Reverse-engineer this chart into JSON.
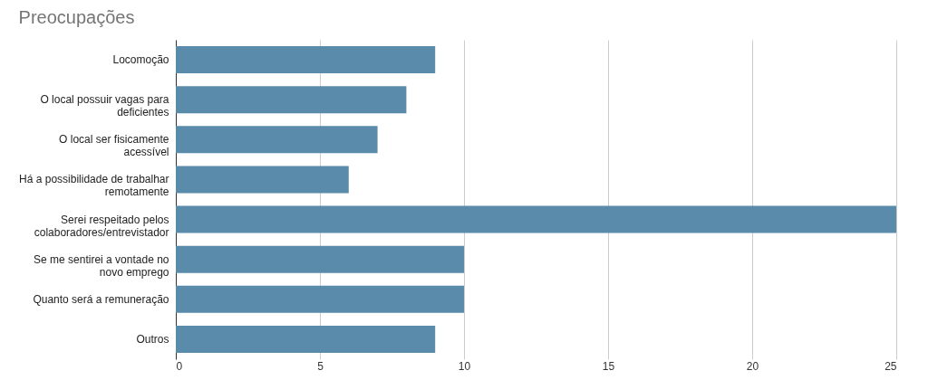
{
  "chart_data": {
    "type": "bar",
    "orientation": "horizontal",
    "title": "Preocupações",
    "categories": [
      "Locomoção",
      "O local possuir vagas para deficientes",
      "O local ser fisicamente acessível",
      "Há a possibilidade de trabalhar remotamente",
      "Serei respeitado pelos colaboradores/entrevistador",
      "Se me sentirei a vontade no novo emprego",
      "Quanto será a remuneração",
      "Outros"
    ],
    "values": [
      9,
      8,
      7,
      6,
      25,
      10,
      10,
      9
    ],
    "color": "#5b8bab",
    "xlim": [
      0,
      25
    ],
    "xticks": [
      0,
      5,
      10,
      15,
      20,
      25
    ],
    "grid": "x"
  }
}
